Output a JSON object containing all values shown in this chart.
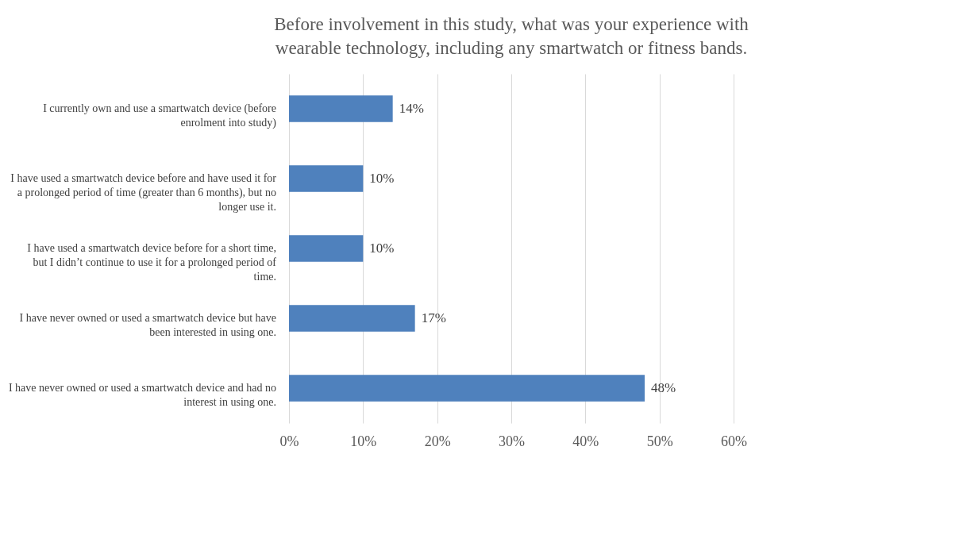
{
  "chart_data": {
    "type": "bar",
    "orientation": "horizontal",
    "title": "Before involvement in this study, what was your experience with wearable technology, including any smartwatch or fitness bands.",
    "categories": [
      "I currently own and use a smartwatch device (before enrolment into study)",
      "I have used a smartwatch device before and have used it for a prolonged period of time (greater than 6 months), but no longer use it.",
      "I have used a smartwatch device before for a short time, but I didn’t continue to use it for a prolonged period of time.",
      "I have never owned or used a smartwatch device but have been interested in using one.",
      "I have never owned or used a smartwatch device and had no interest in using one."
    ],
    "values": [
      14,
      10,
      10,
      17,
      48
    ],
    "color": "#4f81bd",
    "xlim": [
      0,
      60
    ],
    "xticks": [
      {
        "value": 0,
        "label": "0%"
      },
      {
        "value": 10,
        "label": "10%"
      },
      {
        "value": 20,
        "label": "20%"
      },
      {
        "value": 30,
        "label": "30%"
      },
      {
        "value": 40,
        "label": "40%"
      },
      {
        "value": 50,
        "label": "50%"
      },
      {
        "value": 60,
        "label": "60%"
      }
    ],
    "value_labels": [
      "14%",
      "10%",
      "10%",
      "17%",
      "48%"
    ],
    "grid": "x"
  }
}
